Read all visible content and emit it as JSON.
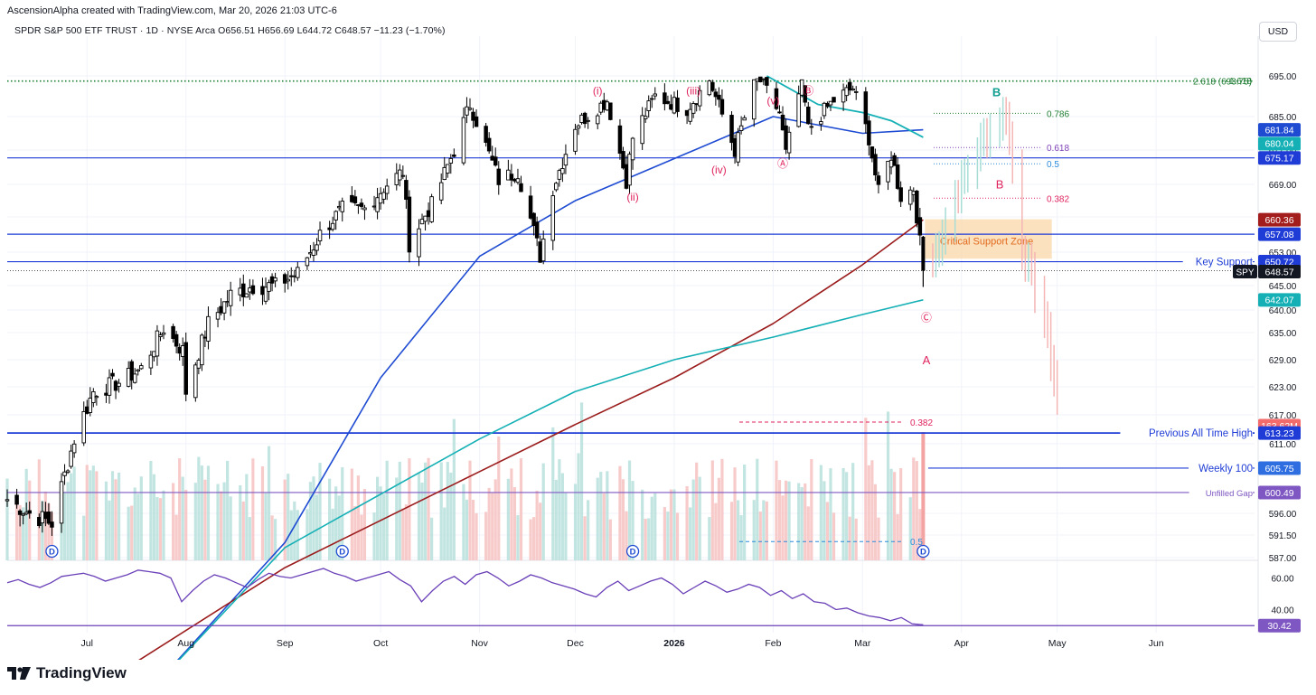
{
  "header": {
    "created_by": "AscensionAlpha created with TradingView.com, Mar 20, 2026 21:03 UTC-6",
    "symbol_line": "SPDR S&P 500 ETF TRUST · 1D · NYSE Arca  O656.51  H656.69  L644.72  C648.57  −11.23 (−1.70%)",
    "currency": "USD"
  },
  "brand": {
    "name": "TradingView"
  },
  "colors": {
    "up": "#4a4a4a",
    "down": "#000000",
    "ma_blue": "#1e4bd2",
    "ma_red": "#9b1c1c",
    "ma_teal": "#14b0b5",
    "hline": "#1f3dd6",
    "rsi": "#6a40b8",
    "fib_pink": "#e0245e",
    "wave_red": "#e0245e",
    "teal_label": "#0f9e8f",
    "zone_fill": "#f9d7a8"
  },
  "chart_data": [
    {
      "type": "candlestick",
      "title": "SPDR S&P 500 ETF TRUST · 1D · NYSE Arca",
      "x_range": [
        "2025-06-06",
        "2026-06-29"
      ],
      "x_ticks": [
        {
          "date": "2025-07-01",
          "label": "Jul"
        },
        {
          "date": "2025-08-01",
          "label": "Aug"
        },
        {
          "date": "2025-09-01",
          "label": "Sep"
        },
        {
          "date": "2025-10-01",
          "label": "Oct"
        },
        {
          "date": "2025-11-01",
          "label": "Nov"
        },
        {
          "date": "2025-12-01",
          "label": "Dec"
        },
        {
          "date": "2026-01-01",
          "label": "2026"
        },
        {
          "date": "2026-02-01",
          "label": "Feb"
        },
        {
          "date": "2026-03-01",
          "label": "Mar"
        },
        {
          "date": "2026-04-01",
          "label": "Apr"
        },
        {
          "date": "2026-05-01",
          "label": "May"
        },
        {
          "date": "2026-06-01",
          "label": "Jun"
        }
      ],
      "y_ticks": [
        695.0,
        685.0,
        677.0,
        669.0,
        661.0,
        653.0,
        645.0,
        640.0,
        635.0,
        629.0,
        623.0,
        617.0,
        611.0,
        596.0,
        591.5,
        587.0
      ],
      "close_path": [
        [
          "2025-06-06",
          599
        ],
        [
          "2025-06-13",
          596
        ],
        [
          "2025-06-20",
          594
        ],
        [
          "2025-06-27",
          612
        ],
        [
          "2025-07-03",
          622
        ],
        [
          "2025-07-11",
          624
        ],
        [
          "2025-07-18",
          627
        ],
        [
          "2025-07-25",
          636
        ],
        [
          "2025-07-31",
          631
        ],
        [
          "2025-08-01",
          622
        ],
        [
          "2025-08-08",
          637
        ],
        [
          "2025-08-15",
          643
        ],
        [
          "2025-08-22",
          645
        ],
        [
          "2025-08-29",
          645
        ],
        [
          "2025-09-05",
          648
        ],
        [
          "2025-09-12",
          657
        ],
        [
          "2025-09-19",
          663
        ],
        [
          "2025-09-26",
          663
        ],
        [
          "2025-10-03",
          669
        ],
        [
          "2025-10-08",
          672
        ],
        [
          "2025-10-10",
          655
        ],
        [
          "2025-10-17",
          664
        ],
        [
          "2025-10-24",
          677
        ],
        [
          "2025-10-29",
          688
        ],
        [
          "2025-11-04",
          676
        ],
        [
          "2025-11-07",
          670
        ],
        [
          "2025-11-13",
          672
        ],
        [
          "2025-11-20",
          652
        ],
        [
          "2025-11-24",
          668
        ],
        [
          "2025-12-01",
          683
        ],
        [
          "2025-12-11",
          689
        ],
        [
          "2025-12-17",
          670
        ],
        [
          "2025-12-19",
          680
        ],
        [
          "2025-12-26",
          690
        ],
        [
          "2026-01-05",
          687
        ],
        [
          "2026-01-12",
          694
        ],
        [
          "2026-01-20",
          677
        ],
        [
          "2026-01-27",
          695
        ],
        [
          "2026-02-03",
          686
        ],
        [
          "2026-02-05",
          676
        ],
        [
          "2026-02-10",
          694
        ],
        [
          "2026-02-12",
          682
        ],
        [
          "2026-02-20",
          689
        ],
        [
          "2026-02-26",
          692
        ],
        [
          "2026-03-03",
          680
        ],
        [
          "2026-03-06",
          667
        ],
        [
          "2026-03-10",
          676
        ],
        [
          "2026-03-13",
          666
        ],
        [
          "2026-03-17",
          668
        ],
        [
          "2026-03-20",
          648.57
        ]
      ],
      "last_bar": {
        "open": 656.51,
        "high": 656.69,
        "low": 644.72,
        "close": 648.57
      },
      "projection_path": [
        [
          "2026-03-23",
          653
        ],
        [
          "2026-03-30",
          668
        ],
        [
          "2026-04-08",
          682
        ],
        [
          "2026-04-15",
          688
        ],
        [
          "2026-04-20",
          656
        ],
        [
          "2026-04-27",
          640
        ],
        [
          "2026-05-01",
          623
        ]
      ],
      "moving_averages": [
        {
          "points": [
            [
              "2025-07-20",
              560
            ],
            [
              "2025-09-01",
              590
            ],
            [
              "2025-10-01",
              625
            ],
            [
              "2025-11-01",
              652
            ],
            [
              "2025-12-01",
              665
            ],
            [
              "2026-01-01",
              675
            ],
            [
              "2026-02-01",
              685
            ],
            [
              "2026-03-01",
              681
            ],
            [
              "2026-03-20",
              681.84
            ]
          ],
          "tag": "681.84"
        },
        {
          "points": [
            [
              "2025-07-01",
              560
            ],
            [
              "2025-09-01",
              585
            ],
            [
              "2025-11-01",
              605
            ],
            [
              "2025-12-01",
              615
            ],
            [
              "2026-01-01",
              625
            ],
            [
              "2026-02-01",
              637
            ],
            [
              "2026-03-01",
              650
            ],
            [
              "2026-03-20",
              660.36
            ]
          ],
          "tag": "660.36"
        },
        {
          "points": [
            [
              "2025-07-20",
              560
            ],
            [
              "2025-09-01",
              589
            ],
            [
              "2025-11-01",
              612
            ],
            [
              "2025-12-01",
              622
            ],
            [
              "2026-01-01",
              629
            ],
            [
              "2026-02-01",
              634
            ],
            [
              "2026-03-01",
              639
            ],
            [
              "2026-03-20",
              642.07
            ]
          ],
          "tag": "642.07"
        },
        {
          "points": [
            [
              "2026-01-30",
              695
            ],
            [
              "2026-02-15",
              688
            ],
            [
              "2026-03-01",
              686
            ],
            [
              "2026-03-10",
              684
            ],
            [
              "2026-03-20",
              680.04
            ]
          ],
          "tag": "680.04"
        }
      ],
      "horizontal_levels": [
        {
          "value": 675.17,
          "label": "",
          "tag": "675.17"
        },
        {
          "value": 657.08,
          "label": "",
          "tag": "657.08"
        },
        {
          "value": 650.72,
          "label": "Key Support",
          "tag": "650.72"
        },
        {
          "value": 613.23,
          "label": "Previous All Time High",
          "tag": "613.23"
        },
        {
          "value": 605.75,
          "label": "Weekly 100",
          "tag": "605.75"
        },
        {
          "value": 600.49,
          "label": "Unfilled Gap",
          "tag": "600.49"
        }
      ],
      "last_price_tag": {
        "label": "SPY",
        "value": "648.57"
      },
      "volume_tag": "163.62M",
      "support_zone": {
        "label": "Critical Support Zone",
        "from": 651,
        "to": 658,
        "start": "2026-03-20",
        "end": "2026-05-01"
      },
      "fib_top": [
        {
          "ratio": "1.618",
          "value": 696.3
        },
        {
          "ratio": "2.618 (693.75)",
          "value": 693.75
        }
      ],
      "fib_projection": [
        {
          "label": "0.786",
          "value": 685.8
        },
        {
          "label": "0.618",
          "value": 677.6
        },
        {
          "label": "0.5",
          "value": 673.8
        },
        {
          "label": "0.382",
          "value": 665.6
        }
      ],
      "fib_lower": [
        {
          "label": "0.382",
          "value": 615.5
        },
        {
          "label": "0.5",
          "value": 590.2
        }
      ],
      "wave_labels": [
        {
          "text": "(i)",
          "date": "2025-12-08",
          "value": 690.5
        },
        {
          "text": "(ii)",
          "date": "2025-12-19",
          "value": 665
        },
        {
          "text": "(iii)",
          "date": "2026-01-07",
          "value": 699.5
        },
        {
          "text": "(iv)",
          "date": "2026-01-15",
          "value": 671.5
        },
        {
          "text": "(v)",
          "date": "2026-02-01",
          "value": 702
        },
        {
          "text": "Ⓐ",
          "date": "2026-02-04",
          "value": 673
        },
        {
          "text": "Ⓑ",
          "date": "2026-02-12",
          "value": 699.5
        },
        {
          "text": "Ⓒ",
          "date": "2026-03-21",
          "value": 637.5
        },
        {
          "text": "A",
          "date": "2026-03-21",
          "value": 628
        },
        {
          "text": "B",
          "date": "2026-04-13",
          "value": 668
        },
        {
          "text": "B",
          "date": "2026-04-12",
          "value": 690
        }
      ],
      "dividend_markers": [
        {
          "date": "2025-06-20",
          "label": "D"
        },
        {
          "date": "2025-09-19",
          "label": "D"
        },
        {
          "date": "2025-12-19",
          "label": "D"
        },
        {
          "date": "2026-03-20",
          "label": "D"
        }
      ]
    },
    {
      "type": "line",
      "title": "",
      "y_ticks": [
        60.0,
        40.0
      ],
      "values": [
        57,
        59,
        56,
        54,
        57,
        61,
        62,
        63,
        61,
        58,
        60,
        62,
        65,
        64,
        63,
        60,
        45,
        52,
        58,
        62,
        60,
        57,
        54,
        59,
        63,
        61,
        60,
        62,
        64,
        66,
        63,
        61,
        58,
        60,
        62,
        64,
        59,
        55,
        45,
        52,
        58,
        61,
        56,
        62,
        64,
        60,
        55,
        58,
        62,
        60,
        57,
        55,
        53,
        50,
        48,
        54,
        58,
        52,
        55,
        58,
        60,
        56,
        50,
        54,
        58,
        55,
        51,
        53,
        56,
        54,
        49,
        52,
        47,
        50,
        45,
        44,
        40,
        41,
        38,
        36,
        35,
        33,
        35,
        31,
        30.42
      ],
      "last_tag": "30.42"
    }
  ]
}
